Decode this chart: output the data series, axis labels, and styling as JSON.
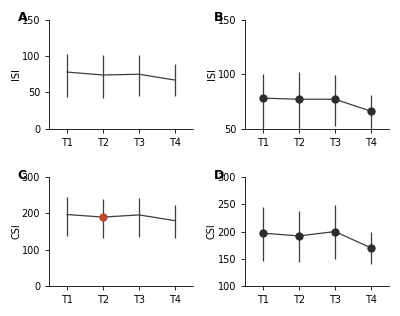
{
  "panels": [
    {
      "label": "A",
      "ylabel": "ISI",
      "ylim": [
        0,
        150
      ],
      "yticks": [
        0,
        50,
        100,
        150
      ],
      "x": [
        1,
        2,
        3,
        4
      ],
      "y": [
        78,
        74,
        75,
        67
      ],
      "yerr_high": [
        25,
        28,
        27,
        22
      ],
      "yerr_low_vals": [
        35,
        32,
        30,
        22
      ],
      "point_colors": [
        "#2d2d2d",
        "#2d2d2d",
        "#2d2d2d",
        "#2d2d2d"
      ],
      "point_sizes": [
        0,
        0,
        0,
        0
      ],
      "xtick_labels": [
        "T1",
        "T2",
        "T3",
        "T4"
      ]
    },
    {
      "label": "B",
      "ylabel": "ISI",
      "ylim": [
        50,
        150
      ],
      "yticks": [
        50,
        100,
        150
      ],
      "x": [
        1,
        2,
        3,
        4
      ],
      "y": [
        78,
        77,
        77,
        66
      ],
      "yerr_high": [
        22,
        25,
        22,
        15
      ],
      "yerr_low_vals": [
        28,
        28,
        25,
        18
      ],
      "point_colors": [
        "#2d2d2d",
        "#2d2d2d",
        "#2d2d2d",
        "#2d2d2d"
      ],
      "point_sizes": [
        5,
        5,
        5,
        5
      ],
      "xtick_labels": [
        "T1",
        "T2",
        "T3",
        "T4"
      ]
    },
    {
      "label": "C",
      "ylabel": "CSI",
      "ylim": [
        0,
        300
      ],
      "yticks": [
        0,
        100,
        200,
        300
      ],
      "x": [
        1,
        2,
        3,
        4
      ],
      "y": [
        197,
        190,
        196,
        180
      ],
      "yerr_high": [
        48,
        50,
        48,
        42
      ],
      "yerr_low_vals": [
        60,
        58,
        60,
        48
      ],
      "point_colors": [
        "#2d2d2d",
        "#c0492c",
        "#2d2d2d",
        "#2d2d2d"
      ],
      "point_sizes": [
        0,
        5,
        0,
        0
      ],
      "xtick_labels": [
        "T1",
        "T2",
        "T3",
        "T4"
      ]
    },
    {
      "label": "D",
      "ylabel": "CSI",
      "ylim": [
        100,
        300
      ],
      "yticks": [
        100,
        150,
        200,
        250,
        300
      ],
      "x": [
        1,
        2,
        3,
        4
      ],
      "y": [
        197,
        192,
        200,
        170
      ],
      "yerr_high": [
        48,
        45,
        48,
        30
      ],
      "yerr_low_vals": [
        52,
        48,
        50,
        30
      ],
      "point_colors": [
        "#2d2d2d",
        "#2d2d2d",
        "#2d2d2d",
        "#2d2d2d"
      ],
      "point_sizes": [
        5,
        5,
        5,
        5
      ],
      "xtick_labels": [
        "T1",
        "T2",
        "T3",
        "T4"
      ]
    }
  ],
  "line_color": "#3d3d3d",
  "background_color": "#ffffff",
  "fig_width": 4.0,
  "fig_height": 3.16
}
